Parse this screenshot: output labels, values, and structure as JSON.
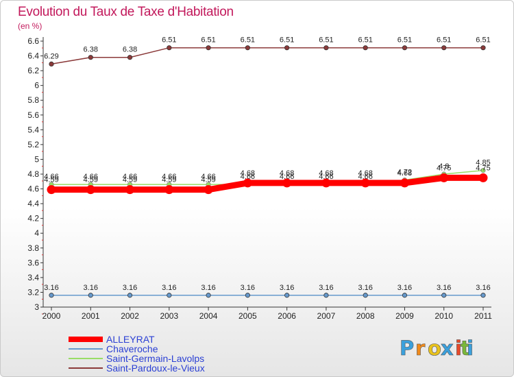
{
  "chart_data": {
    "type": "line",
    "title": "Evolution du Taux de Taxe d'Habitation",
    "ylabel": "(en %)",
    "xlabel": "",
    "categories": [
      "2000",
      "2001",
      "2002",
      "2003",
      "2004",
      "2005",
      "2006",
      "2007",
      "2008",
      "2009",
      "2010",
      "2011"
    ],
    "ylim": [
      3,
      6.6
    ],
    "y_ticks": [
      "3",
      "3.2",
      "3.4",
      "3.6",
      "3.8",
      "4",
      "4.2",
      "4.4",
      "4.6",
      "4.8",
      "5",
      "5.2",
      "5.4",
      "5.6",
      "5.8",
      "6",
      "6.2",
      "6.4",
      "6.6"
    ],
    "grid": false,
    "legend_position": "bottom-left",
    "series": [
      {
        "name": "ALLEYRAT",
        "color": "#ff0000",
        "values": [
          4.59,
          4.59,
          4.59,
          4.59,
          4.59,
          4.68,
          4.68,
          4.68,
          4.68,
          4.68,
          4.75,
          4.75
        ],
        "labels": [
          "4.59",
          "4.59",
          "4.59",
          "4.59",
          "4.59",
          "4.68",
          "4.68",
          "4.68",
          "4.68",
          "4.68",
          "4.75",
          "4.75"
        ]
      },
      {
        "name": "Chaveroche",
        "color": "#6699cc",
        "values": [
          3.16,
          3.16,
          3.16,
          3.16,
          3.16,
          3.16,
          3.16,
          3.16,
          3.16,
          3.16,
          3.16,
          3.16
        ],
        "labels": [
          "3.16",
          "3.16",
          "3.16",
          "3.16",
          "3.16",
          "3.16",
          "3.16",
          "3.16",
          "3.16",
          "3.16",
          "3.16",
          "3.16"
        ]
      },
      {
        "name": "Saint-Germain-Lavolps",
        "color": "#99dd66",
        "values": [
          4.66,
          4.66,
          4.66,
          4.66,
          4.66,
          4.66,
          4.66,
          4.66,
          4.66,
          4.72,
          4.8,
          4.85
        ],
        "labels": [
          "4.66",
          "4.66",
          "4.66",
          "4.66",
          "4.66",
          "4.66",
          "4.66",
          "4.66",
          "4.66",
          "4.72",
          "4.8",
          "4.85"
        ]
      },
      {
        "name": "Saint-Pardoux-le-Vieux",
        "color": "#8b3a3a",
        "values": [
          6.29,
          6.38,
          6.38,
          6.51,
          6.51,
          6.51,
          6.51,
          6.51,
          6.51,
          6.51,
          6.51,
          6.51
        ],
        "labels": [
          "6.29",
          "6.38",
          "6.38",
          "6.51",
          "6.51",
          "6.51",
          "6.51",
          "6.51",
          "6.51",
          "6.51",
          "6.51",
          "6.51"
        ]
      }
    ]
  },
  "logo": {
    "letters": [
      "P",
      "r",
      "o",
      "x",
      "i",
      "t",
      "i"
    ],
    "colors": [
      "#3ba0dc",
      "#f08a1c",
      "#e8c21c",
      "#3ba0dc",
      "#e84a2a",
      "#7ab83a",
      "#3ba0dc"
    ]
  }
}
